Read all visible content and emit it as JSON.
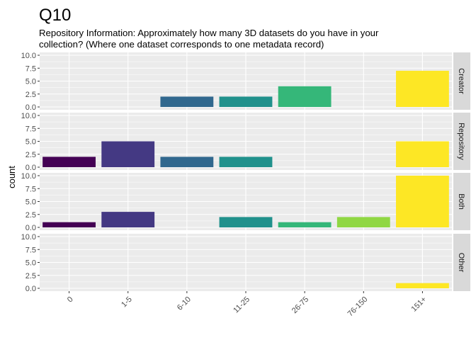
{
  "chart_data": {
    "type": "bar",
    "title": "Q10",
    "subtitle_lines": [
      "Repository Information: Approximately how many 3D datasets do you have in your",
      "collection? (Where one dataset corresponds to one metadata record)"
    ],
    "xlabel": "",
    "ylabel": "count",
    "ylim": [
      0,
      10
    ],
    "yticks": [
      "0.0",
      "2.5",
      "5.0",
      "7.5",
      "10.0"
    ],
    "categories": [
      "0",
      "1-5",
      "6-10",
      "11-25",
      "26-75",
      "76-150",
      "151+"
    ],
    "category_colors": [
      "#440154",
      "#443983",
      "#31688e",
      "#21918c",
      "#35b779",
      "#90d743",
      "#fde725"
    ],
    "grid": true,
    "facets": [
      {
        "label": "Creator",
        "values": [
          0,
          0,
          2,
          2,
          4,
          0,
          7
        ]
      },
      {
        "label": "Repository",
        "values": [
          2,
          5,
          2,
          2,
          0,
          0,
          5
        ]
      },
      {
        "label": "Both",
        "values": [
          1,
          3,
          0,
          2,
          1,
          2,
          10
        ]
      },
      {
        "label": "Other",
        "values": [
          0,
          0,
          0,
          0,
          0,
          0,
          1
        ]
      }
    ]
  }
}
